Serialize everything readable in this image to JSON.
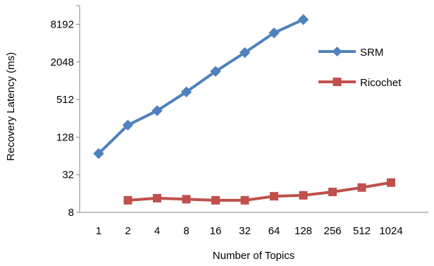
{
  "chart_data": {
    "type": "line",
    "title": "",
    "xlabel": "Number of Topics",
    "ylabel": "Recovery Latency (ms)",
    "yscale": "log2",
    "ylim": [
      8,
      16384
    ],
    "yticks": [
      "8",
      "32",
      "128",
      "512",
      "2048",
      "8192"
    ],
    "ytick_values": [
      8,
      32,
      128,
      512,
      2048,
      8192
    ],
    "categories": [
      "1",
      "2",
      "4",
      "8",
      "16",
      "32",
      "64",
      "128",
      "256",
      "512",
      "1024"
    ],
    "grid": false,
    "legend_position": "right",
    "series": [
      {
        "name": "SRM",
        "color": "#4F81BD",
        "marker": "diamond",
        "values": [
          70,
          200,
          340,
          680,
          1450,
          2900,
          6000,
          9800,
          null,
          null,
          null
        ]
      },
      {
        "name": "Ricochet",
        "color": "#C0504D",
        "marker": "square",
        "values": [
          null,
          12.5,
          13.5,
          13,
          12.5,
          12.5,
          14.5,
          15,
          17,
          20,
          24
        ]
      }
    ]
  }
}
